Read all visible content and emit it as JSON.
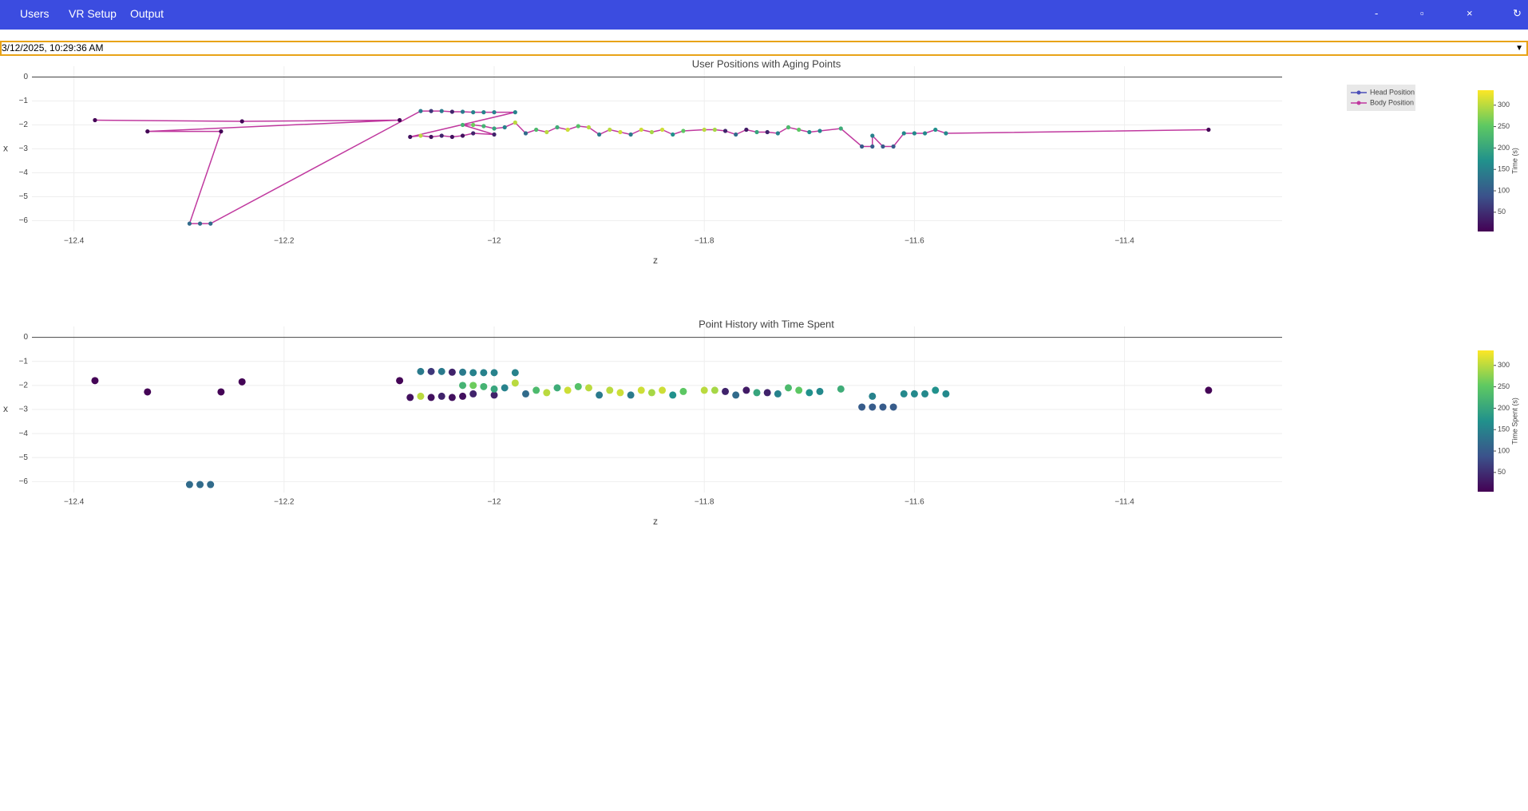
{
  "menu": [
    "Users",
    "VR Setup",
    "Output"
  ],
  "window_controls": [
    "-",
    "▫",
    "×",
    "↻"
  ],
  "session": "3/12/2025, 10:29:36 AM",
  "chart_data": [
    {
      "type": "line",
      "title": "User Positions with Aging Points",
      "x_label": "z",
      "y_label": "x",
      "xlim": [
        -12.44,
        -11.25
      ],
      "ylim": [
        -6.45,
        0.45
      ],
      "xticks": [
        {
          "value": -12.4,
          "label": "−12.4"
        },
        {
          "value": -12.2,
          "label": "−12.2"
        },
        {
          "value": -12,
          "label": "−12"
        },
        {
          "value": -11.8,
          "label": "−11.8"
        },
        {
          "value": -11.6,
          "label": "−11.6"
        },
        {
          "value": -11.4,
          "label": "−11.4"
        }
      ],
      "yticks": [
        0,
        {
          "value": -1,
          "label": "−1"
        },
        {
          "value": -2,
          "label": "−2"
        },
        {
          "value": -3,
          "label": "−3"
        },
        {
          "value": -4,
          "label": "−4"
        },
        {
          "value": -5,
          "label": "−5"
        },
        {
          "value": -6,
          "label": "−6"
        }
      ],
      "grid": true,
      "legend": "top-right",
      "colorbar_title": "Time (s)",
      "clim": [
        5,
        335
      ],
      "cticks": [
        50,
        100,
        150,
        200,
        250,
        300
      ],
      "series": [
        {
          "name": "Head Position",
          "color": "#4b4fb8",
          "x": [],
          "values": [],
          "time": []
        },
        {
          "name": "Body Position",
          "color": "#c0399f",
          "x": [
            -12.38,
            -12.24,
            -12.09,
            -12.33,
            -12.26,
            -12.29,
            -12.28,
            -12.27,
            -12.07,
            -12.06,
            -12.05,
            -12.04,
            -12.03,
            -12.02,
            -12.01,
            -12.0,
            -11.98,
            -12.08,
            -12.07,
            -12.06,
            -12.05,
            -12.04,
            -12.03,
            -12.02,
            -12.0,
            -12.03,
            -12.02,
            -12.01,
            -12.0,
            -11.99,
            -11.98,
            -11.97,
            -11.96,
            -11.95,
            -11.94,
            -11.93,
            -11.92,
            -11.91,
            -11.9,
            -11.89,
            -11.88,
            -11.87,
            -11.86,
            -11.85,
            -11.84,
            -11.83,
            -11.82,
            -11.8,
            -11.79,
            -11.78,
            -11.77,
            -11.76,
            -11.75,
            -11.74,
            -11.73,
            -11.72,
            -11.71,
            -11.7,
            -11.69,
            -11.67,
            -11.65,
            -11.64,
            -11.64,
            -11.63,
            -11.62,
            -11.61,
            -11.6,
            -11.59,
            -11.58,
            -11.57,
            -11.32
          ],
          "values": [
            -1.8,
            -1.85,
            -1.8,
            -2.27,
            -2.27,
            -6.12,
            -6.12,
            -6.12,
            -1.42,
            -1.42,
            -1.42,
            -1.45,
            -1.45,
            -1.47,
            -1.47,
            -1.47,
            -1.47,
            -2.5,
            -2.45,
            -2.5,
            -2.45,
            -2.5,
            -2.45,
            -2.35,
            -2.4,
            -2.0,
            -2.0,
            -2.05,
            -2.15,
            -2.1,
            -1.9,
            -2.35,
            -2.2,
            -2.3,
            -2.1,
            -2.2,
            -2.05,
            -2.1,
            -2.4,
            -2.2,
            -2.3,
            -2.4,
            -2.2,
            -2.3,
            -2.2,
            -2.4,
            -2.25,
            -2.2,
            -2.2,
            -2.25,
            -2.4,
            -2.2,
            -2.3,
            -2.3,
            -2.35,
            -2.1,
            -2.2,
            -2.3,
            -2.25,
            -2.15,
            -2.9,
            -2.9,
            -2.45,
            -2.9,
            -2.9,
            -2.35,
            -2.35,
            -2.35,
            -2.2,
            -2.35,
            -2.2
          ],
          "time": [
            8,
            8,
            8,
            8,
            8,
            120,
            120,
            120,
            140,
            60,
            140,
            40,
            140,
            150,
            150,
            150,
            150,
            20,
            300,
            20,
            40,
            20,
            20,
            40,
            40,
            220,
            260,
            220,
            200,
            150,
            300,
            120,
            230,
            300,
            210,
            310,
            240,
            300,
            140,
            300,
            310,
            140,
            310,
            290,
            310,
            170,
            250,
            300,
            290,
            40,
            120,
            30,
            200,
            40,
            150,
            230,
            250,
            170,
            160,
            210,
            100,
            100,
            150,
            100,
            100,
            160,
            160,
            160,
            170,
            160,
            8
          ]
        }
      ]
    },
    {
      "type": "scatter",
      "title": "Point History with Time Spent",
      "x_label": "z",
      "y_label": "x",
      "xlim": [
        -12.44,
        -11.25
      ],
      "ylim": [
        -6.45,
        0.45
      ],
      "xticks": [
        {
          "value": -12.4,
          "label": "−12.4"
        },
        {
          "value": -12.2,
          "label": "−12.2"
        },
        {
          "value": -12,
          "label": "−12"
        },
        {
          "value": -11.8,
          "label": "−11.8"
        },
        {
          "value": -11.6,
          "label": "−11.6"
        },
        {
          "value": -11.4,
          "label": "−11.4"
        }
      ],
      "yticks": [
        0,
        {
          "value": -1,
          "label": "−1"
        },
        {
          "value": -2,
          "label": "−2"
        },
        {
          "value": -3,
          "label": "−3"
        },
        {
          "value": -4,
          "label": "−4"
        },
        {
          "value": -5,
          "label": "−5"
        },
        {
          "value": -6,
          "label": "−6"
        }
      ],
      "grid": true,
      "colorbar_title": "Time Spent (s)",
      "clim": [
        5,
        335
      ],
      "cticks": [
        50,
        100,
        150,
        200,
        250,
        300
      ],
      "x": [
        -12.38,
        -12.24,
        -12.09,
        -12.33,
        -12.26,
        -12.29,
        -12.28,
        -12.27,
        -12.07,
        -12.06,
        -12.05,
        -12.04,
        -12.03,
        -12.02,
        -12.01,
        -12.0,
        -11.98,
        -12.08,
        -12.07,
        -12.06,
        -12.05,
        -12.04,
        -12.03,
        -12.02,
        -12.0,
        -12.03,
        -12.02,
        -12.01,
        -12.0,
        -11.99,
        -11.98,
        -11.97,
        -11.96,
        -11.95,
        -11.94,
        -11.93,
        -11.92,
        -11.91,
        -11.9,
        -11.89,
        -11.88,
        -11.87,
        -11.86,
        -11.85,
        -11.84,
        -11.83,
        -11.82,
        -11.8,
        -11.79,
        -11.78,
        -11.77,
        -11.76,
        -11.75,
        -11.74,
        -11.73,
        -11.72,
        -11.71,
        -11.7,
        -11.69,
        -11.67,
        -11.65,
        -11.64,
        -11.64,
        -11.63,
        -11.62,
        -11.61,
        -11.6,
        -11.59,
        -11.58,
        -11.57,
        -11.32
      ],
      "values": [
        -1.8,
        -1.85,
        -1.8,
        -2.27,
        -2.27,
        -6.12,
        -6.12,
        -6.12,
        -1.42,
        -1.42,
        -1.42,
        -1.45,
        -1.45,
        -1.47,
        -1.47,
        -1.47,
        -1.47,
        -2.5,
        -2.45,
        -2.5,
        -2.45,
        -2.5,
        -2.45,
        -2.35,
        -2.4,
        -2.0,
        -2.0,
        -2.05,
        -2.15,
        -2.1,
        -1.9,
        -2.35,
        -2.2,
        -2.3,
        -2.1,
        -2.2,
        -2.05,
        -2.1,
        -2.4,
        -2.2,
        -2.3,
        -2.4,
        -2.2,
        -2.3,
        -2.2,
        -2.4,
        -2.25,
        -2.2,
        -2.2,
        -2.25,
        -2.4,
        -2.2,
        -2.3,
        -2.3,
        -2.35,
        -2.1,
        -2.2,
        -2.3,
        -2.25,
        -2.15,
        -2.9,
        -2.9,
        -2.45,
        -2.9,
        -2.9,
        -2.35,
        -2.35,
        -2.35,
        -2.2,
        -2.35,
        -2.2
      ],
      "time": [
        8,
        8,
        8,
        8,
        8,
        120,
        120,
        120,
        140,
        60,
        140,
        40,
        140,
        150,
        150,
        150,
        150,
        20,
        300,
        20,
        40,
        20,
        20,
        40,
        40,
        220,
        260,
        220,
        200,
        150,
        300,
        120,
        230,
        300,
        210,
        310,
        240,
        300,
        140,
        300,
        310,
        140,
        310,
        290,
        310,
        170,
        250,
        300,
        290,
        40,
        120,
        30,
        200,
        40,
        150,
        230,
        250,
        170,
        160,
        210,
        100,
        100,
        150,
        100,
        100,
        160,
        160,
        160,
        170,
        160,
        8
      ]
    }
  ]
}
